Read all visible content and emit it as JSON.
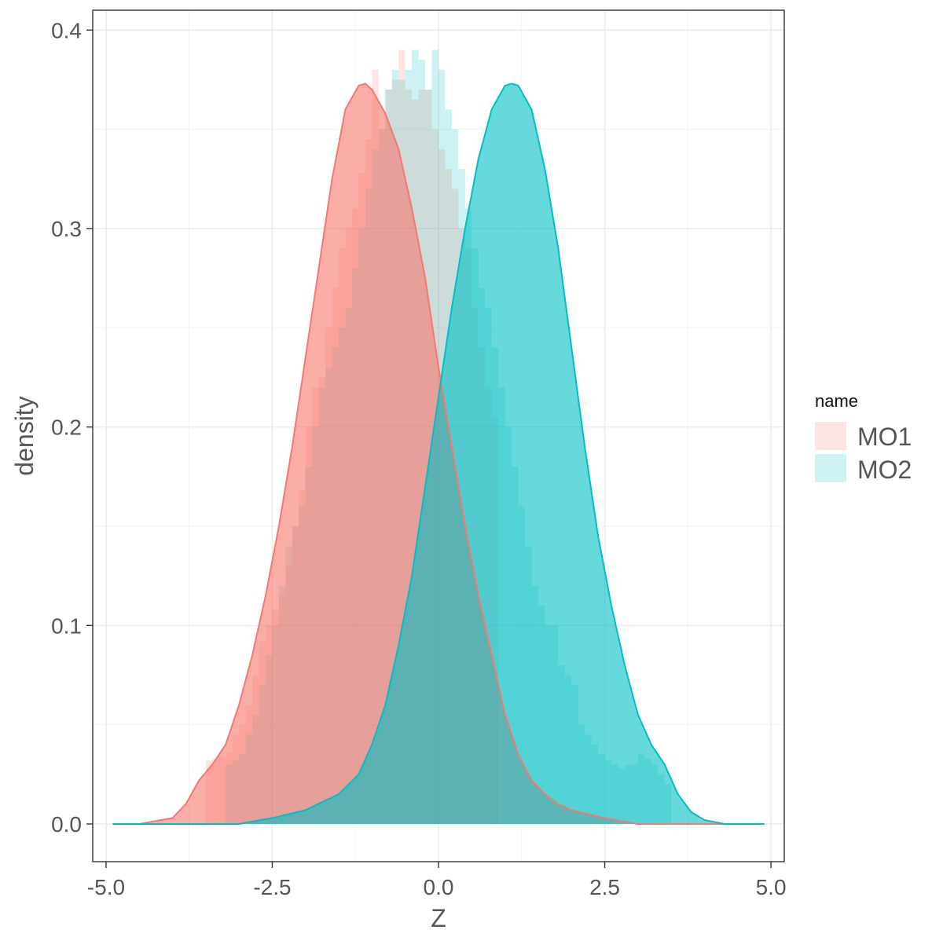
{
  "chart_data": {
    "type": "area",
    "xlabel": "Z",
    "ylabel": "density",
    "xlim": [
      -5.2,
      5.2
    ],
    "ylim": [
      -0.019,
      0.41
    ],
    "x_ticks": [
      -5.0,
      -2.5,
      0.0,
      2.5,
      5.0
    ],
    "x_tick_labels": [
      "-5.0",
      "-2.5",
      "0.0",
      "2.5",
      "5.0"
    ],
    "y_ticks": [
      0.0,
      0.1,
      0.2,
      0.3,
      0.4
    ],
    "y_tick_labels": [
      "0.0",
      "0.1",
      "0.2",
      "0.3",
      "0.4"
    ],
    "grid": true,
    "legend": {
      "title": "name",
      "position": "right"
    },
    "series": [
      {
        "name": "MO1",
        "color": "#F8766D",
        "density": {
          "x": [
            -4.9,
            -4.5,
            -4.0,
            -3.8,
            -3.6,
            -3.4,
            -3.2,
            -3.0,
            -2.8,
            -2.6,
            -2.4,
            -2.2,
            -2.0,
            -1.8,
            -1.6,
            -1.4,
            -1.2,
            -1.1,
            -1.0,
            -0.8,
            -0.6,
            -0.4,
            -0.2,
            0.0,
            0.2,
            0.4,
            0.6,
            0.8,
            1.0,
            1.2,
            1.4,
            1.6,
            1.8,
            2.0,
            2.5,
            3.0,
            3.5,
            4.0,
            4.9
          ],
          "y": [
            0.0,
            0.0,
            0.003,
            0.01,
            0.022,
            0.03,
            0.04,
            0.06,
            0.085,
            0.115,
            0.15,
            0.19,
            0.235,
            0.28,
            0.325,
            0.36,
            0.372,
            0.373,
            0.37,
            0.358,
            0.34,
            0.31,
            0.275,
            0.23,
            0.19,
            0.15,
            0.115,
            0.085,
            0.055,
            0.035,
            0.022,
            0.015,
            0.01,
            0.007,
            0.003,
            0.0,
            0.0,
            0.0,
            0.0
          ]
        },
        "histogram": {
          "bin_start": -3.5,
          "bin_width": 0.1,
          "density": [
            0.032,
            0.033,
            0.034,
            0.036,
            0.045,
            0.05,
            0.06,
            0.075,
            0.092,
            0.1,
            0.108,
            0.115,
            0.13,
            0.15,
            0.168,
            0.2,
            0.22,
            0.225,
            0.25,
            0.27,
            0.29,
            0.3,
            0.31,
            0.328,
            0.345,
            0.38,
            0.35,
            0.37,
            0.375,
            0.39,
            0.37,
            0.365,
            0.37,
            0.37,
            0.35,
            0.34,
            0.33,
            0.32,
            0.3,
            0.29,
            0.26,
            0.24,
            0.22,
            0.205
          ]
        }
      },
      {
        "name": "MO2",
        "color": "#00BFC4",
        "density": {
          "x": [
            -4.9,
            -3.0,
            -2.5,
            -2.0,
            -1.5,
            -1.2,
            -1.0,
            -0.8,
            -0.6,
            -0.4,
            -0.2,
            0.0,
            0.2,
            0.4,
            0.6,
            0.8,
            1.0,
            1.1,
            1.2,
            1.4,
            1.6,
            1.8,
            2.0,
            2.2,
            2.4,
            2.6,
            2.8,
            3.0,
            3.2,
            3.4,
            3.6,
            3.8,
            4.0,
            4.3,
            4.9
          ],
          "y": [
            0.0,
            0.0,
            0.003,
            0.007,
            0.015,
            0.025,
            0.04,
            0.06,
            0.09,
            0.125,
            0.17,
            0.215,
            0.26,
            0.3,
            0.335,
            0.36,
            0.372,
            0.373,
            0.372,
            0.36,
            0.33,
            0.29,
            0.24,
            0.19,
            0.145,
            0.11,
            0.08,
            0.055,
            0.04,
            0.03,
            0.015,
            0.006,
            0.002,
            0.0,
            0.0
          ]
        },
        "histogram": {
          "bin_start": -3.2,
          "bin_width": 0.1,
          "density": [
            0.03,
            0.032,
            0.035,
            0.045,
            0.055,
            0.07,
            0.085,
            0.1,
            0.12,
            0.14,
            0.15,
            0.16,
            0.18,
            0.2,
            0.22,
            0.23,
            0.24,
            0.25,
            0.26,
            0.28,
            0.3,
            0.32,
            0.34,
            0.35,
            0.37,
            0.38,
            0.375,
            0.38,
            0.39,
            0.385,
            0.37,
            0.39,
            0.38,
            0.36,
            0.35,
            0.33,
            0.31,
            0.29,
            0.27,
            0.26,
            0.24,
            0.22,
            0.2,
            0.18,
            0.16,
            0.14,
            0.12,
            0.11,
            0.1,
            0.1,
            0.08,
            0.075,
            0.07,
            0.05,
            0.045,
            0.04,
            0.035,
            0.032,
            0.03,
            0.028,
            0.03,
            0.03,
            0.035,
            0.033,
            0.03,
            0.025,
            0.02
          ]
        }
      }
    ]
  }
}
